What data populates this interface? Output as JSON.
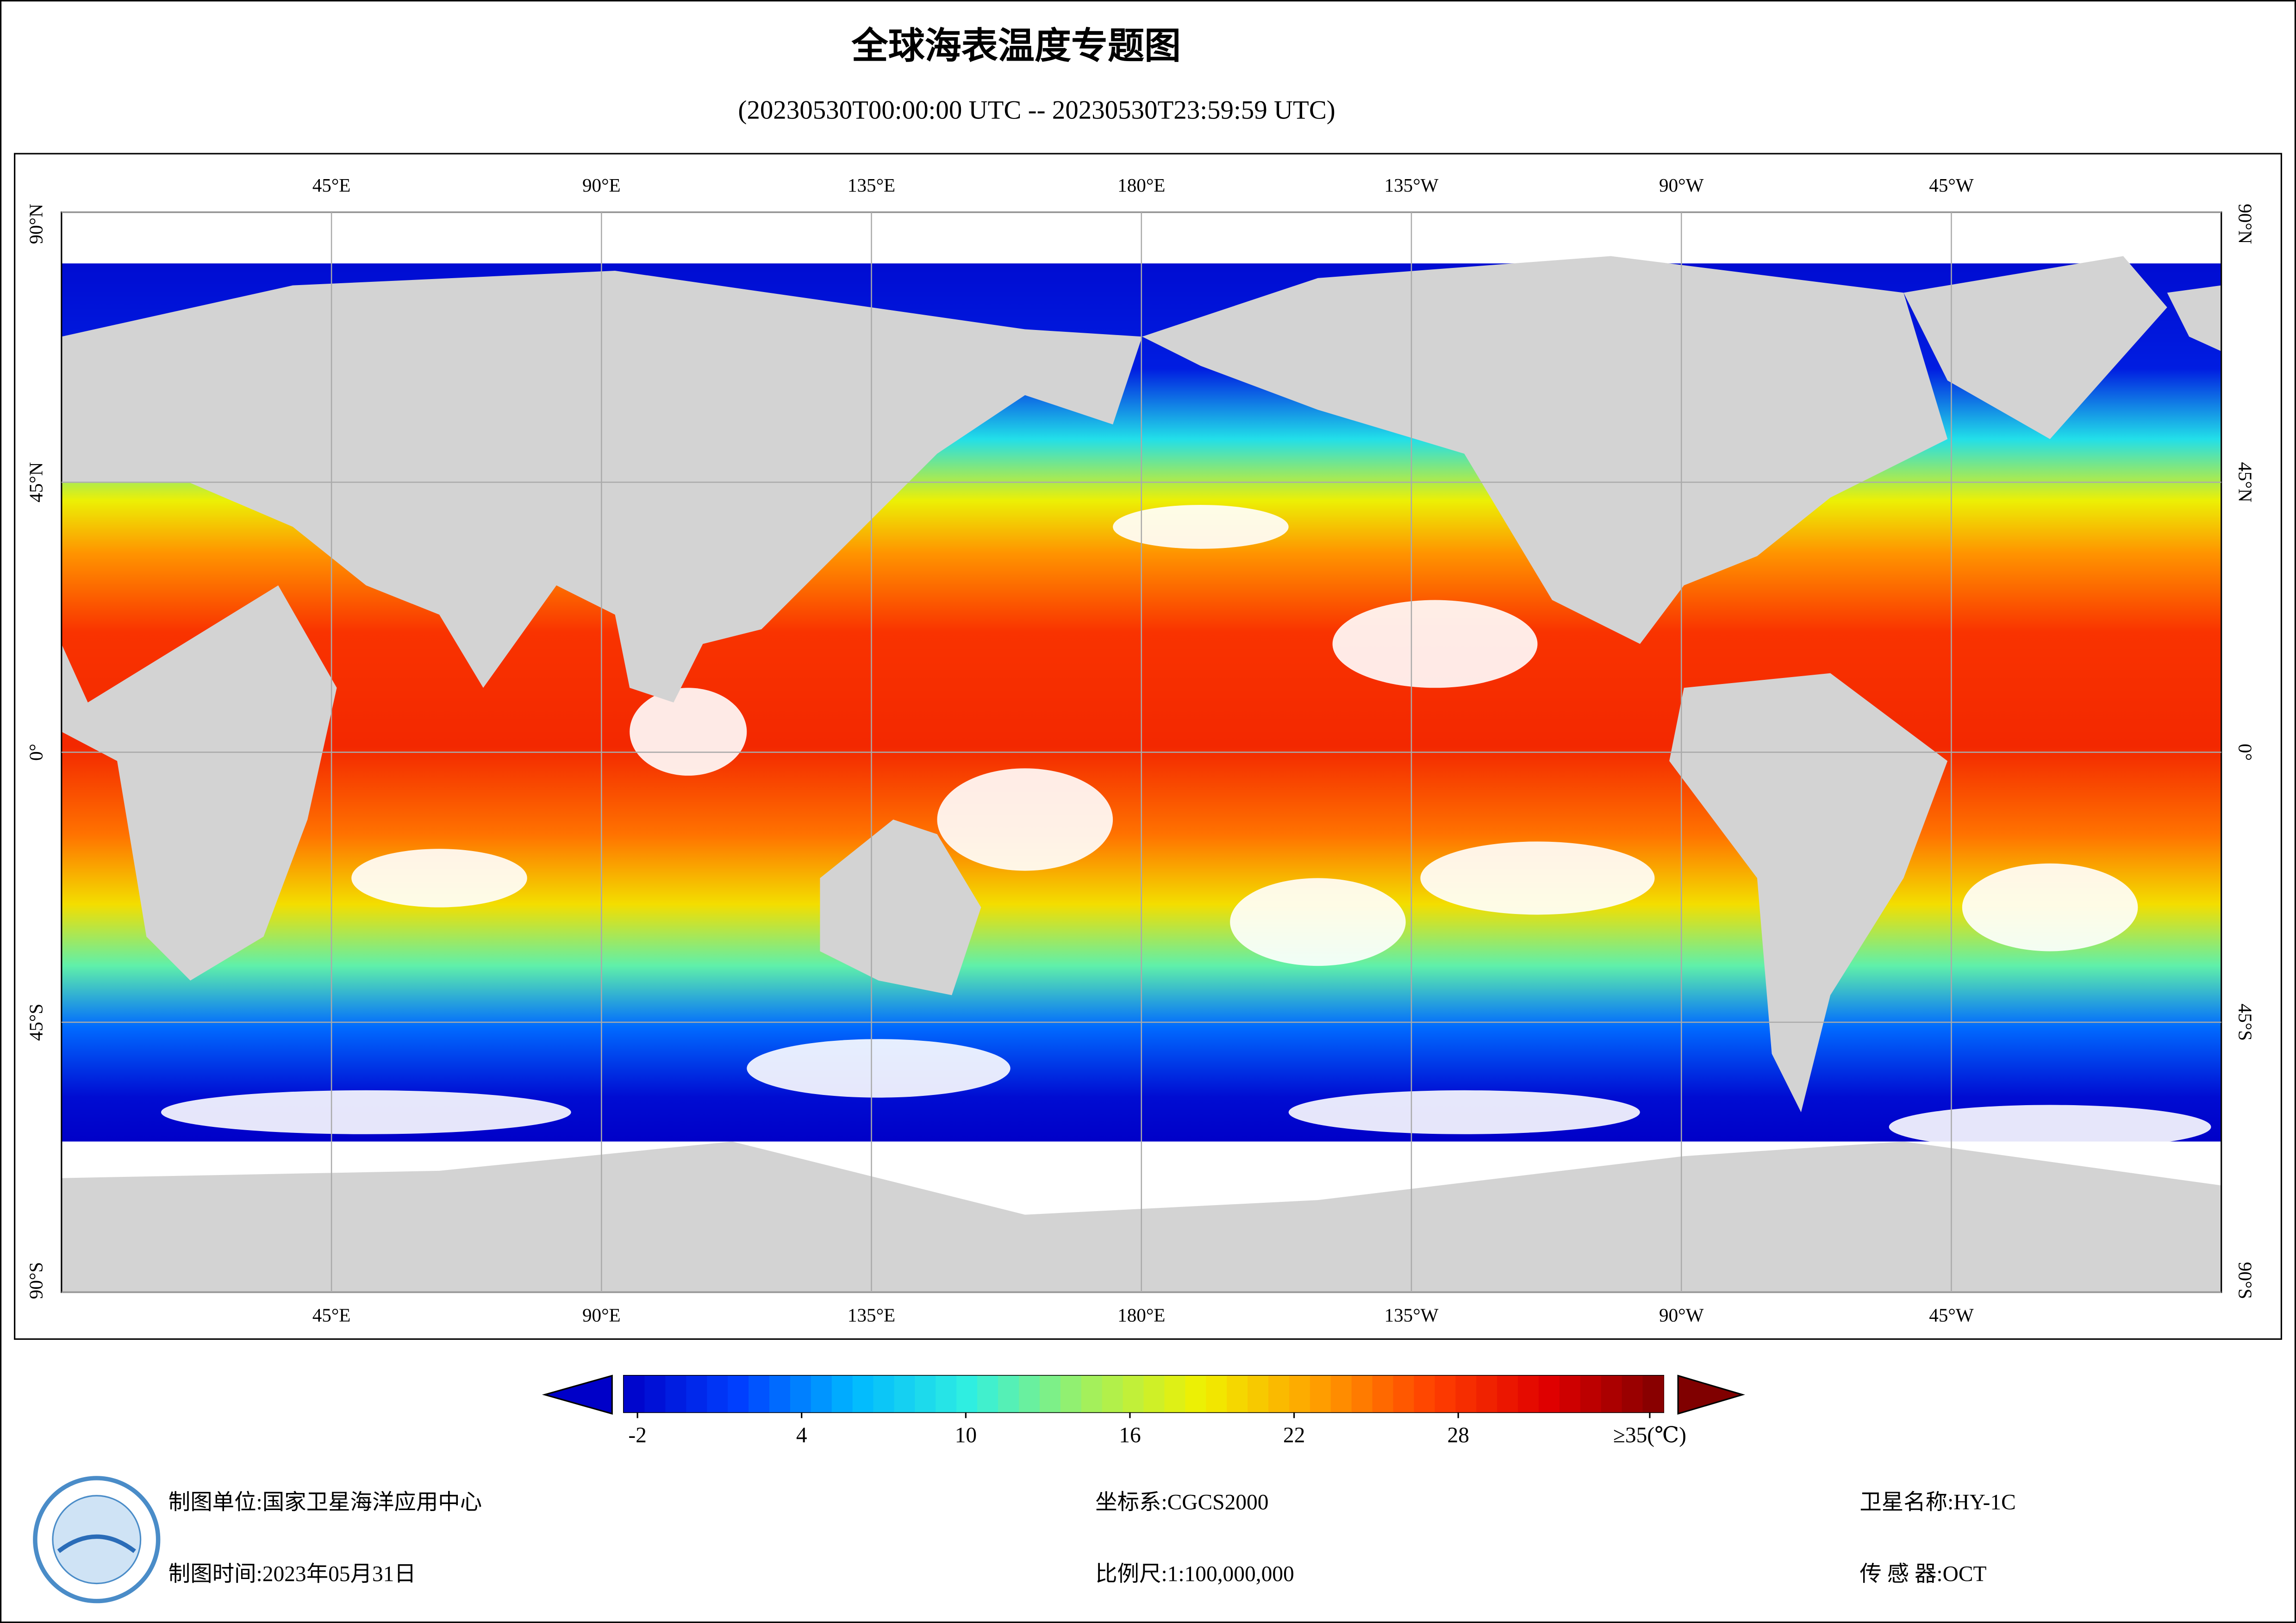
{
  "header": {
    "title": "全球海表温度专题图",
    "subtitle": "(20230530T00:00:00 UTC -- 20230530T23:59:59 UTC)"
  },
  "map": {
    "lonlim": [
      0,
      360
    ],
    "latlim": [
      -90,
      90
    ],
    "lonticks": [
      {
        "value": 45,
        "label": "45°E"
      },
      {
        "value": 90,
        "label": "90°E"
      },
      {
        "value": 135,
        "label": "135°E"
      },
      {
        "value": 180,
        "label": "180°E"
      },
      {
        "value": 225,
        "label": "135°W"
      },
      {
        "value": 270,
        "label": "90°W"
      },
      {
        "value": 315,
        "label": "45°W"
      }
    ],
    "latticks": [
      {
        "value": 90,
        "label": "90°N"
      },
      {
        "value": 45,
        "label": "45°N"
      },
      {
        "value": 0,
        "label": "0°"
      },
      {
        "value": -45,
        "label": "45°S"
      },
      {
        "value": -90,
        "label": "90°S"
      }
    ],
    "grid": true
  },
  "colorbar": {
    "range": [
      -2.5,
      35.5
    ],
    "ticks": [
      -2,
      4,
      10,
      16,
      22,
      28,
      {
        "value": 35,
        "label": "≥35(℃)"
      }
    ],
    "colors": [
      "#0000c8",
      "#0040ff",
      "#00b8ff",
      "#30f0e0",
      "#a0f060",
      "#f0f000",
      "#ffa000",
      "#ff4000",
      "#e00000",
      "#800000"
    ]
  },
  "footer": {
    "unit": "制图单位:国家卫星海洋应用中心",
    "date": "制图时间:2023年05月31日",
    "crs": "坐标系:CGCS2000",
    "scale": "比例尺:1:100,000,000",
    "satellite": "卫星名称:HY-1C",
    "sensor": "传 感 器:OCT"
  }
}
